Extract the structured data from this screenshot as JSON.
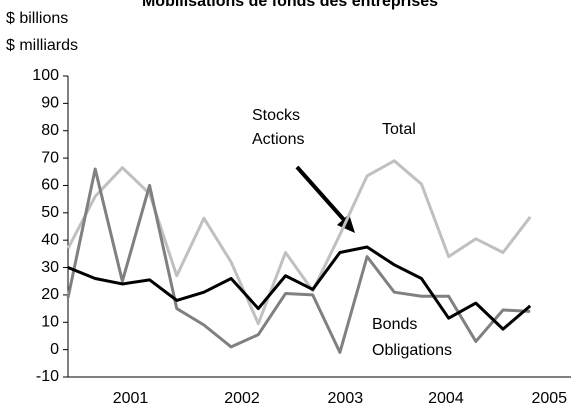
{
  "chart_data": {
    "type": "line",
    "title": "Mobilisations de fonds des entreprises",
    "y_label": [
      "$ billions",
      "$ milliards"
    ],
    "x": [
      0,
      1,
      2,
      3,
      4,
      5,
      6,
      7,
      8,
      9,
      10,
      11,
      12,
      13,
      14,
      15,
      16,
      17
    ],
    "xlim": [
      0,
      18.5
    ],
    "xticks": [
      {
        "value": 2.3,
        "label": "2001"
      },
      {
        "value": 6.4,
        "label": "2002"
      },
      {
        "value": 10.2,
        "label": "2003"
      },
      {
        "value": 13.9,
        "label": "2004"
      },
      {
        "value": 17.7,
        "label": "2005"
      }
    ],
    "ylim": [
      -10,
      100
    ],
    "yticks": [
      -10,
      0,
      10,
      20,
      30,
      40,
      50,
      60,
      70,
      80,
      90,
      100
    ],
    "series": [
      {
        "name": "Total",
        "color": "#c0c0c0",
        "values": [
          37,
          56,
          66.5,
          57,
          27,
          48,
          32,
          9.5,
          35.5,
          21.5,
          42,
          63.5,
          69,
          60.5,
          34,
          40.5,
          35.5,
          48.5
        ]
      },
      {
        "name": "Bonds",
        "alt_name": "Obligations",
        "color": "#808080",
        "values": [
          19,
          66,
          25,
          60,
          15,
          9,
          1,
          5.5,
          20.5,
          20,
          -1,
          34,
          21,
          19.5,
          19.5,
          3,
          14.5,
          14
        ]
      },
      {
        "name": "Stocks",
        "alt_name": "Actions",
        "color": "#000000",
        "values": [
          30,
          26,
          24,
          25.5,
          18,
          21,
          26,
          15,
          27,
          22,
          35.5,
          37.5,
          31,
          26,
          11.5,
          17,
          7.5,
          16
        ]
      }
    ]
  }
}
